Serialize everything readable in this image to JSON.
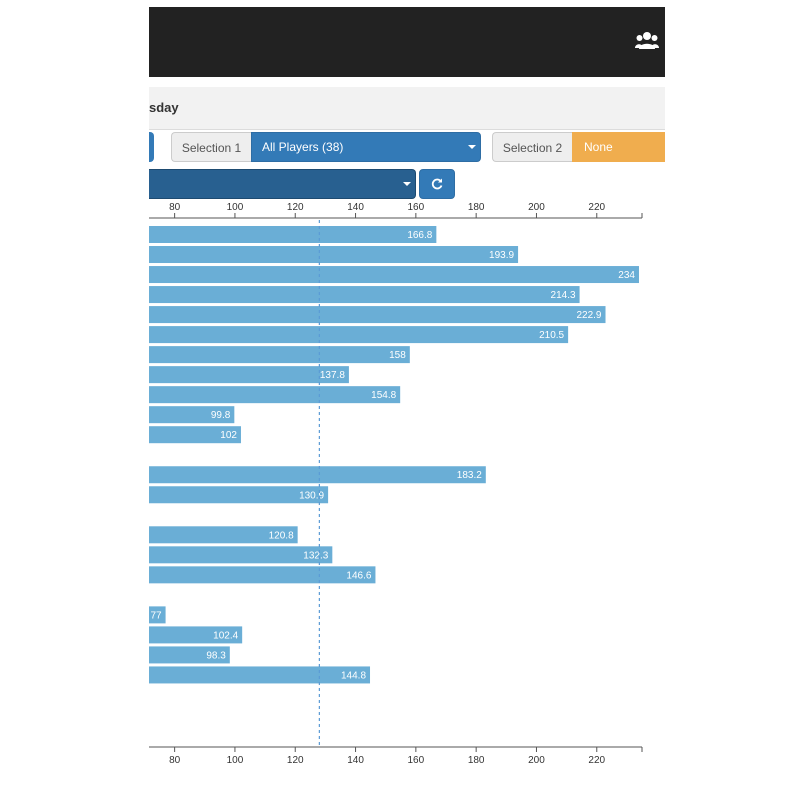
{
  "header": {
    "users_icon": "users-icon"
  },
  "subbar": {
    "title": "sday"
  },
  "controls": {
    "selection1_label": "Selection 1",
    "selection1_value": "All Players (38)",
    "selection2_label": "Selection 2",
    "selection2_value": "None",
    "metric_value": "",
    "refresh_icon": "refresh-icon"
  },
  "colors": {
    "topbar": "#222222",
    "primary": "#337ab7",
    "metric": "#286090",
    "warning": "#f0ad4e",
    "bar": "#6aaed6",
    "reference_line": "#5b9bd5"
  },
  "chart_data": {
    "type": "bar",
    "orientation": "horizontal",
    "title": "",
    "xlabel": "",
    "ylabel": "",
    "x_ticks": [
      80,
      100,
      120,
      140,
      160,
      180,
      200,
      220
    ],
    "xlim": [
      71.5,
      235
    ],
    "reference_line": 128,
    "grid": false,
    "rows": [
      166.8,
      193.9,
      234,
      214.3,
      222.9,
      210.5,
      158,
      137.8,
      154.8,
      99.8,
      102,
      null,
      183.2,
      130.9,
      null,
      120.8,
      132.3,
      146.6,
      null,
      77,
      102.4,
      98.3,
      144.8
    ],
    "labels": [
      "166.8",
      "193.9",
      "234",
      "214.3",
      "222.9",
      "210.5",
      "158",
      "137.8",
      "154.8",
      "99.8",
      "102",
      "",
      "183.2",
      "130.9",
      "",
      "120.8",
      "132.3",
      "146.6",
      "",
      "77",
      "102.4",
      "98.3",
      "144.8"
    ]
  }
}
